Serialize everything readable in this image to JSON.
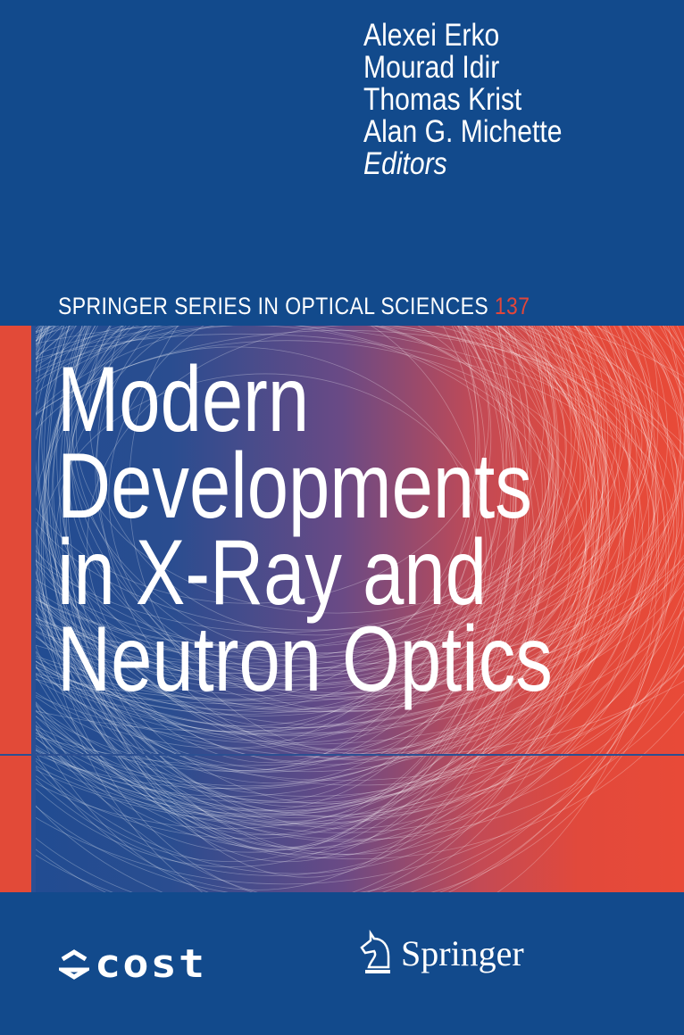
{
  "editors": [
    "Alexei Erko",
    "Mourad Idir",
    "Thomas Krist",
    "Alan G. Michette"
  ],
  "editors_role": "Editors",
  "series": {
    "name": "SPRINGER SERIES IN OPTICAL SCIENCES",
    "number": "137",
    "number_color": "#e0463a"
  },
  "title_lines": [
    "Modern",
    "Developments",
    "in X-Ray and",
    "Neutron Optics"
  ],
  "logos": {
    "cost": "cost",
    "publisher": "Springer"
  },
  "colors": {
    "background": "#124a8c",
    "accent_red": "#e84a38"
  }
}
